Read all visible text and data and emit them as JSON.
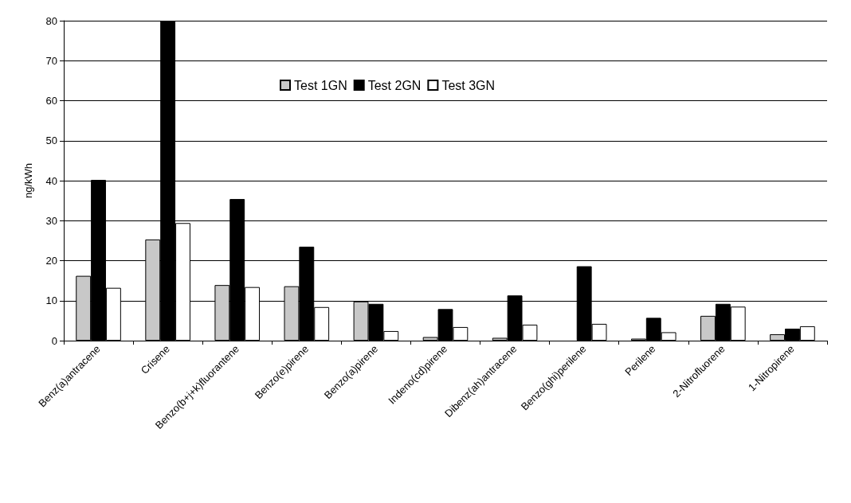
{
  "chart_data": {
    "type": "bar",
    "ylabel": "ng/kWh",
    "categories": [
      "Benz(a)antracene",
      "Crisene",
      "Benzo(b+j+k)fluorantene",
      "Benzo(e)pirene",
      "Benzo(a)pirene",
      "Indeno(cd)pirene",
      "Dibenz(ah)antracene",
      "Benzo(ghi)perilene",
      "Perilene",
      "2-Nitrofluorene",
      "1-Nitropirene"
    ],
    "series": [
      {
        "name": "Test 1GN",
        "color": "#c8c8c8",
        "values": [
          16.2,
          25.3,
          13.9,
          13.6,
          9.8,
          0.9,
          0.7,
          null,
          0.5,
          6.2,
          1.6
        ]
      },
      {
        "name": "Test 2GN",
        "color": "#000000",
        "values": [
          40.2,
          80,
          35.4,
          23.5,
          9.2,
          7.9,
          11.3,
          18.6,
          5.7,
          9.2,
          3.0
        ]
      },
      {
        "name": "Test 3GN",
        "color": "#ffffff",
        "values": [
          13.2,
          29.4,
          13.4,
          8.4,
          2.4,
          3.4,
          4.0,
          4.2,
          2.1,
          8.5,
          3.6
        ]
      }
    ],
    "ylim": [
      0,
      80
    ],
    "yticks": [
      0,
      10,
      20,
      30,
      40,
      50,
      60,
      70,
      80
    ],
    "grid": "y",
    "legend": "top"
  }
}
